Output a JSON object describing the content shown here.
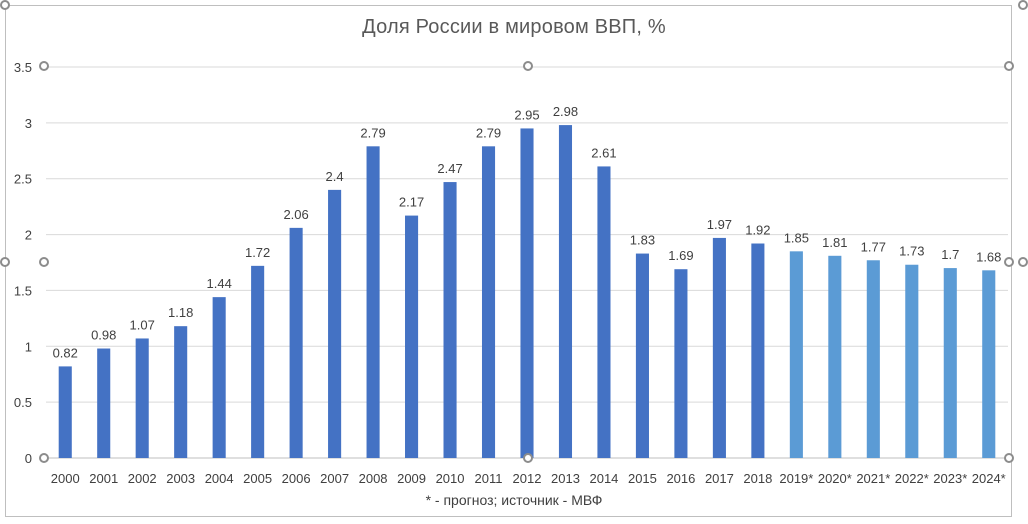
{
  "chart_data": {
    "type": "bar",
    "title": "Доля России в мировом ВВП, %",
    "footnote": "* - прогноз; источник - МВФ",
    "categories": [
      "2000",
      "2001",
      "2002",
      "2003",
      "2004",
      "2005",
      "2006",
      "2007",
      "2008",
      "2009",
      "2010",
      "2011",
      "2012",
      "2013",
      "2014",
      "2015",
      "2016",
      "2017",
      "2018",
      "2019*",
      "2020*",
      "2021*",
      "2022*",
      "2023*",
      "2024*"
    ],
    "values": [
      0.82,
      0.98,
      1.07,
      1.18,
      1.44,
      1.72,
      2.06,
      2.4,
      2.79,
      2.17,
      2.47,
      2.79,
      2.95,
      2.98,
      2.61,
      1.83,
      1.69,
      1.97,
      1.92,
      1.85,
      1.81,
      1.77,
      1.73,
      1.7,
      1.68
    ],
    "data_labels": [
      "0.82",
      "0.98",
      "1.07",
      "1.18",
      "1.44",
      "1.72",
      "2.06",
      "2.4",
      "2.79",
      "2.17",
      "2.47",
      "2.79",
      "2.95",
      "2.98",
      "2.61",
      "1.83",
      "1.69",
      "1.97",
      "1.92",
      "1.85",
      "1.81",
      "1.77",
      "1.73",
      "1.7",
      "1.68"
    ],
    "forecast": [
      false,
      false,
      false,
      false,
      false,
      false,
      false,
      false,
      false,
      false,
      false,
      false,
      false,
      false,
      false,
      false,
      false,
      false,
      false,
      true,
      true,
      true,
      true,
      true,
      true
    ],
    "ylim": [
      0,
      3.5
    ],
    "yticks": [
      0,
      0.5,
      1,
      1.5,
      2,
      2.5,
      3,
      3.5
    ],
    "ytick_labels": [
      "0",
      "0.5",
      "1",
      "1.5",
      "2",
      "2.5",
      "3",
      "3.5"
    ],
    "grid": true,
    "colors": {
      "actual": "#4472c4",
      "forecast": "#5b9bd5",
      "grid": "#d9d9d9",
      "axis": "#bfbfbf",
      "label": "#404040"
    }
  }
}
